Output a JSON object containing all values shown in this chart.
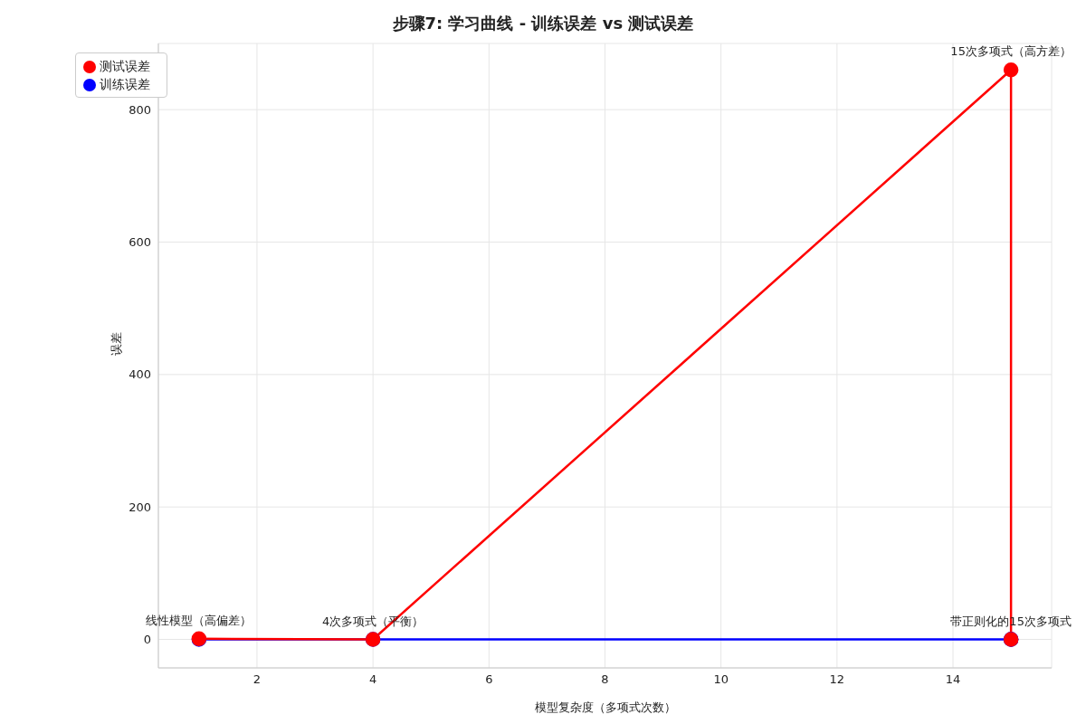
{
  "chart_data": {
    "type": "line",
    "title": "步骤7: 学习曲线 - 训练误差 vs 测试误差",
    "xlabel": "模型复杂度（多项式次数）",
    "ylabel": "误差",
    "x": [
      1,
      4,
      15,
      15
    ],
    "series": [
      {
        "name": "训练误差",
        "color": "#0000ff",
        "values": [
          0,
          0,
          0,
          0
        ]
      },
      {
        "name": "测试误差",
        "color": "#ff0000",
        "values": [
          1,
          0,
          860,
          0
        ]
      }
    ],
    "xlim": [
      0.3,
      15.7
    ],
    "xticks": [
      2,
      4,
      6,
      8,
      10,
      12,
      14
    ],
    "ylim": [
      -43,
      900
    ],
    "yticks": [
      0,
      200,
      400,
      600,
      800
    ],
    "annotations": [
      {
        "text": "线性模型（高偏差）",
        "x": 1,
        "y": 1
      },
      {
        "text": "4次多项式（平衡）",
        "x": 4,
        "y": 0
      },
      {
        "text": "15次多项式（高方差）",
        "x": 15,
        "y": 860
      },
      {
        "text": "带正则化的15次多项式",
        "x": 15,
        "y": 0
      }
    ],
    "grid": true,
    "legend": "top left",
    "marker": "circle",
    "line_style": "solid"
  }
}
